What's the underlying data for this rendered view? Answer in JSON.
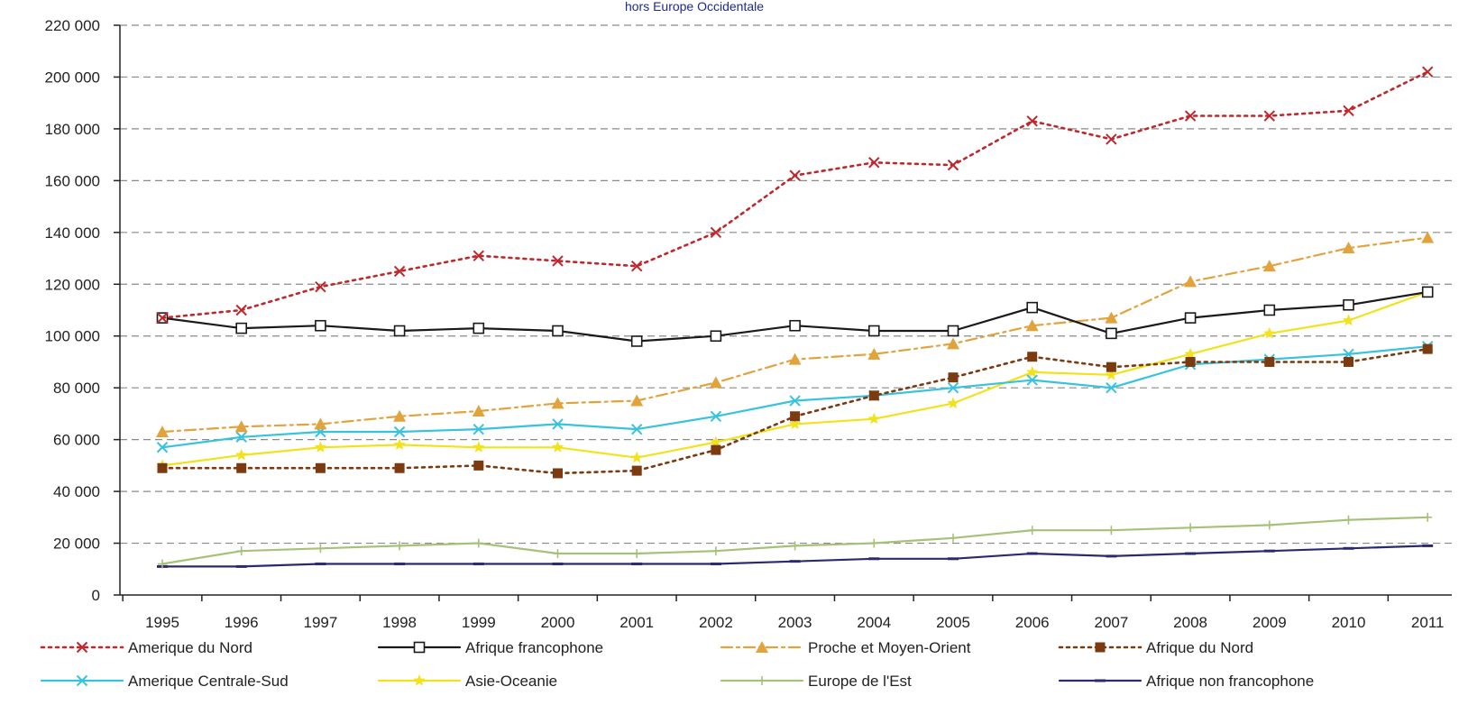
{
  "chart_data": {
    "type": "line",
    "title": "",
    "subtitle": "hors Europe Occidentale",
    "xlabel": "",
    "ylabel": "",
    "x": [
      "1995",
      "1996",
      "1997",
      "1998",
      "1999",
      "2000",
      "2001",
      "2002",
      "2003",
      "2004",
      "2005",
      "2006",
      "2007",
      "2008",
      "2009",
      "2010",
      "2011"
    ],
    "ylim": [
      0,
      220000
    ],
    "y_ticks": [
      0,
      20000,
      40000,
      60000,
      80000,
      100000,
      120000,
      140000,
      160000,
      180000,
      200000,
      220000
    ],
    "y_tick_labels": [
      "0",
      "20 000",
      "40 000",
      "60 000",
      "80 000",
      "100 000",
      "120 000",
      "140 000",
      "160 000",
      "180 000",
      "200 000",
      "220 000"
    ],
    "grid": "horizontal dashed",
    "legend_position": "bottom",
    "series": [
      {
        "name": "Amerique du Nord",
        "color": "#c0272d",
        "dash": "dotted",
        "marker": "x",
        "values": [
          107000,
          110000,
          119000,
          125000,
          131000,
          129000,
          127000,
          140000,
          162000,
          167000,
          166000,
          183000,
          176000,
          185000,
          185000,
          187000,
          202000
        ]
      },
      {
        "name": "Afrique francophone",
        "color": "#1a1a1a",
        "dash": "solid",
        "marker": "square-open",
        "values": [
          107000,
          103000,
          104000,
          102000,
          103000,
          102000,
          98000,
          100000,
          104000,
          102000,
          102000,
          111000,
          101000,
          107000,
          110000,
          112000,
          117000
        ]
      },
      {
        "name": "Proche et Moyen-Orient",
        "color": "#e2a33c",
        "dash": "dashdot",
        "marker": "triangle",
        "values": [
          63000,
          65000,
          66000,
          69000,
          71000,
          74000,
          75000,
          82000,
          91000,
          93000,
          97000,
          104000,
          107000,
          121000,
          127000,
          134000,
          138000
        ]
      },
      {
        "name": "Afrique du Nord",
        "color": "#7b3a10",
        "dash": "dotted",
        "marker": "square",
        "values": [
          49000,
          49000,
          49000,
          49000,
          50000,
          47000,
          48000,
          56000,
          69000,
          77000,
          84000,
          92000,
          88000,
          90000,
          90000,
          90000,
          95000
        ]
      },
      {
        "name": "Amerique Centrale-Sud",
        "color": "#38c3dc",
        "dash": "solid",
        "marker": "x",
        "values": [
          57000,
          61000,
          63000,
          63000,
          64000,
          66000,
          64000,
          69000,
          75000,
          77000,
          80000,
          83000,
          80000,
          89000,
          91000,
          93000,
          96000
        ]
      },
      {
        "name": "Asie-Oceanie",
        "color": "#f2e21c",
        "dash": "solid",
        "marker": "star",
        "values": [
          50000,
          54000,
          57000,
          58000,
          57000,
          57000,
          53000,
          59000,
          66000,
          68000,
          74000,
          86000,
          85000,
          93000,
          101000,
          106000,
          117000
        ]
      },
      {
        "name": "Europe de l'Est",
        "color": "#a6c178",
        "dash": "solid",
        "marker": "plus",
        "values": [
          12000,
          17000,
          18000,
          19000,
          20000,
          16000,
          16000,
          17000,
          19000,
          20000,
          22000,
          25000,
          25000,
          26000,
          27000,
          29000,
          30000
        ]
      },
      {
        "name": "Afrique non francophone",
        "color": "#2c2a6e",
        "dash": "solid",
        "marker": "dash",
        "values": [
          11000,
          11000,
          12000,
          12000,
          12000,
          12000,
          12000,
          12000,
          13000,
          14000,
          14000,
          16000,
          15000,
          16000,
          17000,
          18000,
          19000
        ]
      }
    ]
  }
}
